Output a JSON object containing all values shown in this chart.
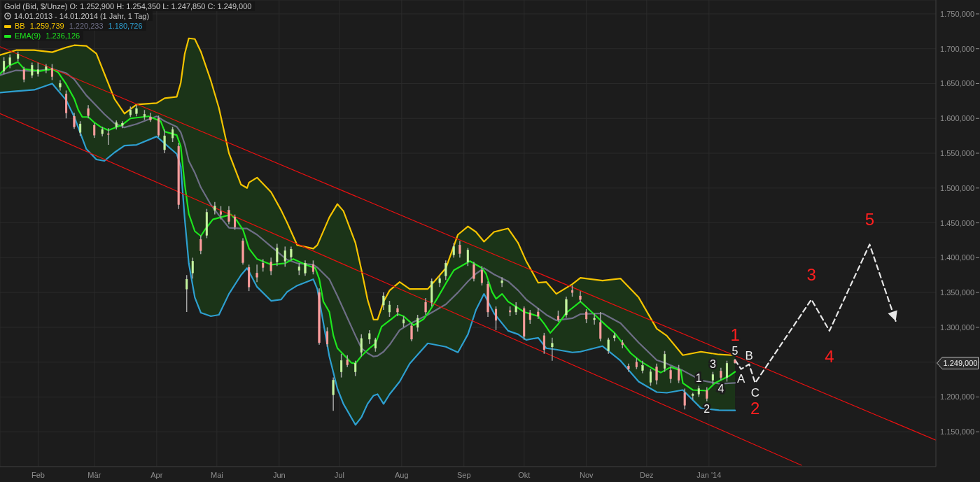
{
  "chart_data": {
    "type": "candlestick",
    "title": "Gold (Bid, $/Unze) O: 1.252,900 H: 1.254,350 L: 1.247,850 C: 1.249,000",
    "subtitle": "14.01.2013 - 14.01.2014 (1 Jahr, 1 Tag)",
    "x": [
      "2013-01-15",
      "2013-01-18",
      "2013-01-22",
      "2013-01-25",
      "2013-01-29",
      "2013-02-01",
      "2013-02-05",
      "2013-02-08",
      "2013-02-12",
      "2013-02-15",
      "2013-02-19",
      "2013-02-22",
      "2013-02-26",
      "2013-03-01",
      "2013-03-05",
      "2013-03-08",
      "2013-03-12",
      "2013-03-15",
      "2013-03-19",
      "2013-03-22",
      "2013-03-26",
      "2013-03-29",
      "2013-04-02",
      "2013-04-05",
      "2013-04-09",
      "2013-04-12",
      "2013-04-16",
      "2013-04-19",
      "2013-04-23",
      "2013-04-26",
      "2013-04-30",
      "2013-05-03",
      "2013-05-07",
      "2013-05-10",
      "2013-05-14",
      "2013-05-17",
      "2013-05-21",
      "2013-05-24",
      "2013-05-28",
      "2013-05-31",
      "2013-06-04",
      "2013-06-07",
      "2013-06-11",
      "2013-06-14",
      "2013-06-18",
      "2013-06-21",
      "2013-06-25",
      "2013-06-28",
      "2013-07-02",
      "2013-07-05",
      "2013-07-09",
      "2013-07-12",
      "2013-07-16",
      "2013-07-19",
      "2013-07-23",
      "2013-07-26",
      "2013-07-30",
      "2013-08-02",
      "2013-08-06",
      "2013-08-09",
      "2013-08-13",
      "2013-08-16",
      "2013-08-20",
      "2013-08-23",
      "2013-08-27",
      "2013-08-30",
      "2013-09-03",
      "2013-09-06",
      "2013-09-10",
      "2013-09-13",
      "2013-09-17",
      "2013-09-20",
      "2013-09-24",
      "2013-09-27",
      "2013-10-01",
      "2013-10-04",
      "2013-10-08",
      "2013-10-11",
      "2013-10-15",
      "2013-10-18",
      "2013-10-22",
      "2013-10-25",
      "2013-10-29",
      "2013-11-01",
      "2013-11-05",
      "2013-11-08",
      "2013-11-12",
      "2013-11-15",
      "2013-11-19",
      "2013-11-22",
      "2013-11-26",
      "2013-11-29",
      "2013-12-03",
      "2013-12-06",
      "2013-12-10",
      "2013-12-13",
      "2013-12-17",
      "2013-12-20",
      "2013-12-24",
      "2013-12-27",
      "2013-12-31",
      "2014-01-03",
      "2014-01-07",
      "2014-01-10",
      "2014-01-14"
    ],
    "ohlc": [
      [
        1668,
        1688,
        1664,
        1682
      ],
      [
        1677,
        1692,
        1672,
        1687
      ],
      [
        1686,
        1696,
        1682,
        1692
      ],
      [
        1670,
        1674,
        1652,
        1656
      ],
      [
        1662,
        1680,
        1658,
        1676
      ],
      [
        1664,
        1680,
        1660,
        1670
      ],
      [
        1670,
        1678,
        1665,
        1674
      ],
      [
        1672,
        1678,
        1655,
        1660
      ],
      [
        1645,
        1655,
        1640,
        1650
      ],
      [
        1635,
        1640,
        1600,
        1608
      ],
      [
        1603,
        1608,
        1585,
        1588
      ],
      [
        1580,
        1596,
        1575,
        1592
      ],
      [
        1614,
        1619,
        1600,
        1604
      ],
      [
        1590,
        1593,
        1572,
        1576
      ],
      [
        1578,
        1588,
        1574,
        1584
      ],
      [
        1578,
        1586,
        1562,
        1577
      ],
      [
        1588,
        1597,
        1584,
        1594
      ],
      [
        1590,
        1596,
        1586,
        1593
      ],
      [
        1605,
        1617,
        1602,
        1612
      ],
      [
        1607,
        1619,
        1603,
        1614
      ],
      [
        1603,
        1612,
        1598,
        1606
      ],
      [
        1602,
        1608,
        1595,
        1598
      ],
      [
        1600,
        1604,
        1573,
        1576
      ],
      [
        1555,
        1584,
        1550,
        1575
      ],
      [
        1572,
        1588,
        1566,
        1584
      ],
      [
        1560,
        1565,
        1470,
        1476
      ],
      [
        1355,
        1375,
        1322,
        1369
      ],
      [
        1378,
        1400,
        1370,
        1395
      ],
      [
        1426,
        1432,
        1405,
        1410
      ],
      [
        1432,
        1470,
        1428,
        1465
      ],
      [
        1468,
        1480,
        1462,
        1474
      ],
      [
        1466,
        1474,
        1455,
        1462
      ],
      [
        1468,
        1474,
        1448,
        1452
      ],
      [
        1458,
        1462,
        1440,
        1444
      ],
      [
        1424,
        1428,
        1390,
        1393
      ],
      [
        1386,
        1390,
        1352,
        1358
      ],
      [
        1378,
        1390,
        1365,
        1372
      ],
      [
        1392,
        1398,
        1380,
        1386
      ],
      [
        1394,
        1400,
        1375,
        1381
      ],
      [
        1394,
        1420,
        1388,
        1414
      ],
      [
        1395,
        1416,
        1387,
        1410
      ],
      [
        1401,
        1416,
        1396,
        1412
      ],
      [
        1382,
        1392,
        1375,
        1387
      ],
      [
        1378,
        1396,
        1374,
        1392
      ],
      [
        1390,
        1396,
        1376,
        1380
      ],
      [
        1350,
        1356,
        1275,
        1278
      ],
      [
        1294,
        1300,
        1272,
        1276
      ],
      [
        1203,
        1228,
        1180,
        1224
      ],
      [
        1236,
        1262,
        1228,
        1252
      ],
      [
        1253,
        1260,
        1243,
        1246
      ],
      [
        1236,
        1252,
        1230,
        1248
      ],
      [
        1264,
        1290,
        1258,
        1284
      ],
      [
        1283,
        1296,
        1276,
        1291
      ],
      [
        1270,
        1285,
        1265,
        1282
      ],
      [
        1332,
        1350,
        1325,
        1345
      ],
      [
        1322,
        1338,
        1315,
        1332
      ],
      [
        1327,
        1332,
        1316,
        1322
      ],
      [
        1306,
        1316,
        1300,
        1311
      ],
      [
        1302,
        1306,
        1280,
        1283
      ],
      [
        1300,
        1318,
        1294,
        1313
      ],
      [
        1336,
        1342,
        1318,
        1322
      ],
      [
        1336,
        1370,
        1330,
        1366
      ],
      [
        1364,
        1374,
        1358,
        1370
      ],
      [
        1374,
        1396,
        1368,
        1392
      ],
      [
        1404,
        1421,
        1400,
        1416
      ],
      [
        1418,
        1424,
        1400,
        1406
      ],
      [
        1394,
        1414,
        1388,
        1411
      ],
      [
        1390,
        1394,
        1366,
        1370
      ],
      [
        1382,
        1388,
        1360,
        1364
      ],
      [
        1362,
        1366,
        1315,
        1322
      ],
      [
        1326,
        1330,
        1296,
        1310
      ],
      [
        1364,
        1372,
        1358,
        1367
      ],
      [
        1324,
        1330,
        1316,
        1322
      ],
      [
        1322,
        1336,
        1318,
        1330
      ],
      [
        1327,
        1330,
        1282,
        1287
      ],
      [
        1321,
        1325,
        1305,
        1311
      ],
      [
        1322,
        1328,
        1312,
        1316
      ],
      [
        1288,
        1292,
        1262,
        1268
      ],
      [
        1272,
        1285,
        1252,
        1277
      ],
      [
        1316,
        1324,
        1308,
        1311
      ],
      [
        1318,
        1344,
        1314,
        1340
      ],
      [
        1353,
        1360,
        1344,
        1350
      ],
      [
        1345,
        1352,
        1336,
        1340
      ],
      [
        1322,
        1326,
        1306,
        1312
      ],
      [
        1311,
        1320,
        1304,
        1313
      ],
      [
        1307,
        1322,
        1280,
        1284
      ],
      [
        1266,
        1285,
        1262,
        1282
      ],
      [
        1285,
        1292,
        1280,
        1288
      ],
      [
        1278,
        1282,
        1270,
        1275
      ],
      [
        1244,
        1248,
        1236,
        1240
      ],
      [
        1250,
        1256,
        1240,
        1243
      ],
      [
        1238,
        1252,
        1234,
        1245
      ],
      [
        1221,
        1240,
        1216,
        1236
      ],
      [
        1243,
        1248,
        1218,
        1224
      ],
      [
        1241,
        1266,
        1236,
        1261
      ],
      [
        1238,
        1244,
        1220,
        1226
      ],
      [
        1240,
        1246,
        1220,
        1224
      ],
      [
        1206,
        1212,
        1182,
        1188
      ],
      [
        1202,
        1206,
        1196,
        1204
      ],
      [
        1204,
        1216,
        1200,
        1212
      ],
      [
        1209,
        1214,
        1194,
        1198
      ],
      [
        1224,
        1236,
        1218,
        1232
      ],
      [
        1237,
        1242,
        1224,
        1228
      ],
      [
        1228,
        1252,
        1222,
        1248
      ],
      [
        1252.9,
        1254.35,
        1247.85,
        1249
      ]
    ],
    "colors": [
      "#c6f5a0",
      "#c6f5a0",
      "#c6f5a0",
      "#ff9e9e",
      "#c6f5a0",
      "#c6f5a0",
      "#c6f5a0",
      "#ff9e9e",
      "#c6f5a0",
      "#ff9e9e",
      "#ff9e9e",
      "#c6f5a0",
      "#ff9e9e",
      "#ff9e9e",
      "#c6f5a0",
      "#ff9e9e",
      "#c6f5a0",
      "#c6f5a0",
      "#c6f5a0",
      "#c6f5a0",
      "#c6f5a0",
      "#ff9e9e",
      "#ff9e9e",
      "#c6f5a0",
      "#c6f5a0",
      "#ff9e9e",
      "#c6f5a0",
      "#c6f5a0",
      "#ff9e9e",
      "#c6f5a0",
      "#c6f5a0",
      "#ff9e9e",
      "#ff9e9e",
      "#ff9e9e",
      "#ff9e9e",
      "#ff9e9e",
      "#ff9e9e",
      "#ff9e9e",
      "#ff9e9e",
      "#c6f5a0",
      "#c6f5a0",
      "#c6f5a0",
      "#c6f5a0",
      "#c6f5a0",
      "#ff9e9e",
      "#ff9e9e",
      "#ff9e9e",
      "#c6f5a0",
      "#c6f5a0",
      "#ff9e9e",
      "#c6f5a0",
      "#c6f5a0",
      "#c6f5a0",
      "#c6f5a0",
      "#c6f5a0",
      "#c6f5a0",
      "#ff9e9e",
      "#c6f5a0",
      "#ff9e9e",
      "#c6f5a0",
      "#ff9e9e",
      "#c6f5a0",
      "#c6f5a0",
      "#c6f5a0",
      "#c6f5a0",
      "#ff9e9e",
      "#c6f5a0",
      "#ff9e9e",
      "#ff9e9e",
      "#ff9e9e",
      "#ff9e9e",
      "#c6f5a0",
      "#ff9e9e",
      "#c6f5a0",
      "#ff9e9e",
      "#ff9e9e",
      "#ff9e9e",
      "#ff9e9e",
      "#c6f5a0",
      "#ff9e9e",
      "#c6f5a0",
      "#ff9e9e",
      "#ff9e9e",
      "#ff9e9e",
      "#c6f5a0",
      "#ff9e9e",
      "#c6f5a0",
      "#c6f5a0",
      "#ff9e9e",
      "#ff9e9e",
      "#ff9e9e",
      "#c6f5a0",
      "#c6f5a0",
      "#ff9e9e",
      "#c6f5a0",
      "#ff9e9e",
      "#ff9e9e",
      "#ff9e9e",
      "#c6f5a0",
      "#c6f5a0",
      "#ff9e9e",
      "#c6f5a0",
      "#ff9e9e",
      "#c6f5a0",
      "#ff9e9e"
    ],
    "value_labels": [
      null,
      null,
      null,
      null,
      null,
      null,
      null,
      null,
      null,
      null,
      null,
      null,
      null,
      null,
      null,
      null,
      null,
      null,
      null,
      null,
      null,
      null,
      null,
      null,
      null,
      null,
      null,
      null,
      null,
      null,
      null,
      null,
      null,
      null,
      null,
      null,
      null,
      null,
      null,
      null,
      null,
      null,
      null,
      null,
      null,
      null,
      null,
      null,
      null,
      null,
      null,
      null,
      null,
      null,
      null,
      null,
      null,
      null,
      null,
      null,
      null,
      null,
      null,
      null,
      null,
      null,
      null,
      null,
      null,
      null,
      null,
      null,
      null,
      null,
      null,
      null,
      null,
      null,
      null,
      null,
      null,
      null,
      null,
      null,
      null,
      null,
      null,
      null,
      null,
      null,
      null,
      null,
      null,
      null,
      null,
      null,
      null,
      null,
      null,
      "1",
      "2",
      "3",
      "4",
      null,
      "5"
    ],
    "series": [
      {
        "type": "line",
        "name": "BB",
        "color": "#f5c400",
        "x": [
          "2013-01-13",
          "2013-01-21",
          "2013-01-30",
          "2013-02-08",
          "2013-02-15",
          "2013-02-19",
          "2013-02-25",
          "2013-03-02",
          "2013-03-06",
          "2013-03-11",
          "2013-03-16",
          "2013-03-22",
          "2013-04-01",
          "2013-04-05",
          "2013-04-11",
          "2013-04-13",
          "2013-04-15",
          "2013-04-17",
          "2013-04-20",
          "2013-04-23",
          "2013-04-28",
          "2013-05-02",
          "2013-05-07",
          "2013-05-13",
          "2013-05-16",
          "2013-05-17",
          "2013-05-21",
          "2013-05-28",
          "2013-06-02",
          "2013-06-05",
          "2013-06-10",
          "2013-06-18",
          "2013-06-20",
          "2013-06-26",
          "2013-06-30",
          "2013-07-03",
          "2013-07-09",
          "2013-07-12",
          "2013-07-15",
          "2013-07-18",
          "2013-07-20",
          "2013-07-23",
          "2013-07-26",
          "2013-07-31",
          "2013-08-05",
          "2013-08-14",
          "2013-08-23",
          "2013-08-29",
          "2013-09-03",
          "2013-09-07",
          "2013-09-11",
          "2013-09-16",
          "2013-09-23",
          "2013-09-28",
          "2013-10-02",
          "2013-10-08",
          "2013-10-12",
          "2013-10-17",
          "2013-10-25",
          "2013-10-29",
          "2013-11-09",
          "2013-11-18",
          "2013-11-27",
          "2013-12-06",
          "2013-12-11",
          "2013-12-19",
          "2013-12-28",
          "2014-01-06",
          "2014-01-14"
        ],
        "values": [
          1691,
          1698,
          1698,
          1695,
          1702,
          1705,
          1704,
          1693,
          1664,
          1628,
          1607,
          1620,
          1622,
          1629,
          1631,
          1651,
          1693,
          1715,
          1714,
          1696,
          1654,
          1615,
          1550,
          1505,
          1500,
          1508,
          1515,
          1494,
          1468,
          1450,
          1418,
          1413,
          1418,
          1458,
          1477,
          1467,
          1421,
          1382,
          1340,
          1311,
          1311,
          1337,
          1353,
          1365,
          1355,
          1355,
          1385,
          1433,
          1445,
          1437,
          1423,
          1437,
          1442,
          1421,
          1395,
          1364,
          1365,
          1348,
          1362,
          1371,
          1367,
          1370,
          1343,
          1298,
          1288,
          1260,
          1265,
          1261,
          1259.739
        ]
      },
      {
        "type": "line",
        "color": "#6e6e86",
        "x": [
          "2013-01-13",
          "2013-01-21",
          "2013-01-30",
          "2013-02-08",
          "2013-02-15",
          "2013-02-19",
          "2013-02-25",
          "2013-03-02",
          "2013-03-06",
          "2013-03-11",
          "2013-03-16",
          "2013-03-22",
          "2013-04-01",
          "2013-04-05",
          "2013-04-11",
          "2013-04-13",
          "2013-04-15",
          "2013-04-17",
          "2013-04-20",
          "2013-04-23",
          "2013-04-28",
          "2013-05-02",
          "2013-05-07",
          "2013-05-13",
          "2013-05-16",
          "2013-05-17",
          "2013-05-21",
          "2013-05-28",
          "2013-06-02",
          "2013-06-05",
          "2013-06-10",
          "2013-06-18",
          "2013-06-20",
          "2013-06-26",
          "2013-06-30",
          "2013-07-03",
          "2013-07-09",
          "2013-07-12",
          "2013-07-15",
          "2013-07-18",
          "2013-07-20",
          "2013-07-23",
          "2013-07-26",
          "2013-07-31",
          "2013-08-05",
          "2013-08-14",
          "2013-08-23",
          "2013-08-29",
          "2013-09-03",
          "2013-09-07",
          "2013-09-11",
          "2013-09-16",
          "2013-09-23",
          "2013-09-28",
          "2013-10-02",
          "2013-10-08",
          "2013-10-12",
          "2013-10-17",
          "2013-10-25",
          "2013-10-29",
          "2013-11-09",
          "2013-11-18",
          "2013-11-27",
          "2013-12-06",
          "2013-12-11",
          "2013-12-19",
          "2013-12-28",
          "2014-01-06",
          "2014-01-14"
        ],
        "values": [
          1662,
          1669,
          1668,
          1671,
          1665,
          1656,
          1633,
          1618,
          1606,
          1593,
          1587,
          1592,
          1603,
          1596,
          1588,
          1580,
          1563,
          1539,
          1522,
          1501,
          1476,
          1461,
          1443,
          1442,
          1442,
          1440,
          1433,
          1416,
          1404,
          1397,
          1392,
          1390,
          1386,
          1369,
          1345,
          1326,
          1288,
          1270,
          1263,
          1258,
          1259,
          1265,
          1275,
          1296,
          1305,
          1318,
          1333,
          1350,
          1366,
          1377,
          1385,
          1376,
          1366,
          1353,
          1340,
          1327,
          1318,
          1310,
          1313,
          1319,
          1320,
          1306,
          1278,
          1253,
          1248,
          1238,
          1224,
          1219,
          1220.233
        ],
        "upper": [
          1691,
          1698,
          1698,
          1695,
          1702,
          1705,
          1704,
          1693,
          1664,
          1628,
          1607,
          1620,
          1622,
          1629,
          1631,
          1651,
          1693,
          1715,
          1714,
          1696,
          1654,
          1615,
          1550,
          1505,
          1500,
          1508,
          1515,
          1494,
          1468,
          1450,
          1418,
          1413,
          1418,
          1458,
          1477,
          1467,
          1421,
          1382,
          1340,
          1311,
          1311,
          1337,
          1353,
          1365,
          1355,
          1355,
          1385,
          1433,
          1445,
          1437,
          1423,
          1437,
          1442,
          1421,
          1395,
          1364,
          1365,
          1348,
          1362,
          1371,
          1367,
          1370,
          1343,
          1298,
          1288,
          1260,
          1265,
          1261,
          1259.739
        ],
        "lower": [
          1637,
          1639,
          1641,
          1650,
          1626,
          1602,
          1556,
          1541,
          1539,
          1551,
          1561,
          1562,
          1574,
          1564,
          1549,
          1531,
          1455,
          1392,
          1343,
          1321,
          1316,
          1318,
          1348,
          1375,
          1385,
          1380,
          1358,
          1338,
          1340,
          1351,
          1360,
          1369,
          1355,
          1258,
          1212,
          1190,
          1160,
          1171,
          1190,
          1202,
          1204,
          1190,
          1204,
          1222,
          1248,
          1277,
          1272,
          1264,
          1290,
          1325,
          1348,
          1320,
          1295,
          1290,
          1282,
          1285,
          1270,
          1268,
          1264,
          1265,
          1273,
          1252,
          1222,
          1207,
          1206,
          1210,
          1184,
          1181,
          1180.726
        ]
      },
      {
        "type": "line",
        "color": "#2e9fd0",
        "x": [
          "2013-01-13",
          "2013-01-21",
          "2013-01-30",
          "2013-02-08",
          "2013-02-15",
          "2013-02-19",
          "2013-02-25",
          "2013-03-02",
          "2013-03-06",
          "2013-03-11",
          "2013-03-16",
          "2013-03-22",
          "2013-04-01",
          "2013-04-05",
          "2013-04-11",
          "2013-04-13",
          "2013-04-15",
          "2013-04-17",
          "2013-04-20",
          "2013-04-23",
          "2013-04-28",
          "2013-05-02",
          "2013-05-07",
          "2013-05-13",
          "2013-05-16",
          "2013-05-17",
          "2013-05-21",
          "2013-05-28",
          "2013-06-02",
          "2013-06-05",
          "2013-06-10",
          "2013-06-18",
          "2013-06-20",
          "2013-06-26",
          "2013-06-30",
          "2013-07-03",
          "2013-07-09",
          "2013-07-12",
          "2013-07-15",
          "2013-07-18",
          "2013-07-20",
          "2013-07-23",
          "2013-07-26",
          "2013-07-31",
          "2013-08-05",
          "2013-08-14",
          "2013-08-23",
          "2013-08-29",
          "2013-09-03",
          "2013-09-07",
          "2013-09-11",
          "2013-09-16",
          "2013-09-23",
          "2013-09-28",
          "2013-10-02",
          "2013-10-08",
          "2013-10-12",
          "2013-10-17",
          "2013-10-25",
          "2013-10-29",
          "2013-11-09",
          "2013-11-18",
          "2013-11-27",
          "2013-12-06",
          "2013-12-11",
          "2013-12-19",
          "2013-12-28",
          "2014-01-06",
          "2014-01-14"
        ],
        "values": [
          1637,
          1639,
          1641,
          1650,
          1626,
          1602,
          1556,
          1541,
          1539,
          1551,
          1561,
          1562,
          1574,
          1564,
          1549,
          1531,
          1455,
          1392,
          1343,
          1321,
          1316,
          1318,
          1348,
          1375,
          1385,
          1380,
          1358,
          1338,
          1340,
          1351,
          1360,
          1369,
          1355,
          1258,
          1212,
          1190,
          1160,
          1171,
          1190,
          1202,
          1204,
          1190,
          1204,
          1222,
          1248,
          1277,
          1272,
          1264,
          1290,
          1325,
          1348,
          1320,
          1295,
          1290,
          1282,
          1285,
          1270,
          1268,
          1264,
          1265,
          1273,
          1252,
          1222,
          1207,
          1206,
          1210,
          1184,
          1181,
          1180.726
        ]
      },
      {
        "type": "line",
        "name": "EMA(9)",
        "color": "#1ee61e",
        "x": [
          "2013-01-13",
          "2013-01-17",
          "2013-01-22",
          "2013-01-25",
          "2013-02-02",
          "2013-02-08",
          "2013-02-11",
          "2013-02-15",
          "2013-02-19",
          "2013-02-21",
          "2013-02-23",
          "2013-02-26",
          "2013-03-01",
          "2013-03-04",
          "2013-03-08",
          "2013-03-15",
          "2013-03-19",
          "2013-03-28",
          "2013-04-03",
          "2013-04-05",
          "2013-04-11",
          "2013-04-13",
          "2013-04-15",
          "2013-04-17",
          "2013-04-20",
          "2013-04-23",
          "2013-04-25",
          "2013-04-29",
          "2013-05-08",
          "2013-05-11",
          "2013-05-14",
          "2013-05-17",
          "2013-05-21",
          "2013-05-28",
          "2013-06-04",
          "2013-06-08",
          "2013-06-15",
          "2013-06-19",
          "2013-06-21",
          "2013-06-23",
          "2013-06-26",
          "2013-06-28",
          "2013-06-30",
          "2013-07-07",
          "2013-07-09",
          "2013-07-12",
          "2013-07-16",
          "2013-07-19",
          "2013-07-22",
          "2013-07-27",
          "2013-07-30",
          "2013-08-02",
          "2013-08-07",
          "2013-08-12",
          "2013-08-15",
          "2013-08-19",
          "2013-08-23",
          "2013-08-27",
          "2013-09-04",
          "2013-09-10",
          "2013-09-12",
          "2013-09-15",
          "2013-09-17",
          "2013-09-20",
          "2013-09-23",
          "2013-10-01",
          "2013-10-08",
          "2013-10-11",
          "2013-10-14",
          "2013-10-18",
          "2013-10-22",
          "2013-10-29",
          "2013-11-04",
          "2013-11-11",
          "2013-11-15",
          "2013-11-23",
          "2013-11-28",
          "2013-12-05",
          "2013-12-08",
          "2013-12-13",
          "2013-12-18",
          "2013-12-19",
          "2013-12-24",
          "2013-12-31",
          "2014-01-04",
          "2014-01-11",
          "2014-01-14"
        ],
        "values": [
          1664,
          1675,
          1681,
          1671,
          1668,
          1671,
          1666,
          1649,
          1628,
          1612,
          1602,
          1602,
          1594,
          1588,
          1583,
          1591,
          1600,
          1603,
          1596,
          1581,
          1576,
          1560,
          1505,
          1463,
          1438,
          1431,
          1440,
          1455,
          1462,
          1453,
          1440,
          1413,
          1398,
          1390,
          1392,
          1398,
          1389,
          1385,
          1369,
          1337,
          1322,
          1288,
          1270,
          1249,
          1248,
          1259,
          1270,
          1277,
          1301,
          1312,
          1319,
          1316,
          1303,
          1312,
          1324,
          1343,
          1363,
          1382,
          1395,
          1385,
          1377,
          1351,
          1341,
          1348,
          1337,
          1322,
          1316,
          1305,
          1292,
          1305,
          1321,
          1337,
          1321,
          1302,
          1292,
          1263,
          1251,
          1239,
          1235,
          1243,
          1238,
          1220,
          1210,
          1209,
          1220,
          1230,
          1236.126
        ]
      },
      {
        "type": "line",
        "color": "#e81010",
        "x": [
          "2013-01-13",
          "2014-04-24"
        ],
        "values": [
          1703,
          1138
        ]
      },
      {
        "type": "line",
        "color": "#e81010",
        "x": [
          "2013-01-13",
          "2014-02-16"
        ],
        "values": [
          1607,
          1102
        ]
      },
      {
        "type": "line",
        "color": "#e6e6e6",
        "line_style": "dashed",
        "x": [
          "2014-01-14",
          "2014-01-17",
          "2014-01-21",
          "2014-01-24",
          "2014-02-21",
          "2014-03-02",
          "2014-03-22",
          "2014-04-04"
        ],
        "values": [
          1253,
          1240,
          1247,
          1220,
          1340,
          1295,
          1419,
          1309
        ]
      }
    ],
    "xlim": [
      "2013-01-13",
      "2014-04-24"
    ],
    "ylim": [
      1100,
      1770
    ],
    "xticks": [
      {
        "value": "2013-02-01",
        "label": "Feb"
      },
      {
        "value": "2013-03-01",
        "label": "Mär"
      },
      {
        "value": "2013-04-01",
        "label": "Apr"
      },
      {
        "value": "2013-05-01",
        "label": "Mai"
      },
      {
        "value": "2013-06-01",
        "label": "Jun"
      },
      {
        "value": "2013-07-01",
        "label": "Jul"
      },
      {
        "value": "2013-08-01",
        "label": "Aug"
      },
      {
        "value": "2013-09-01",
        "label": "Sep"
      },
      {
        "value": "2013-10-01",
        "label": "Okt"
      },
      {
        "value": "2013-11-01",
        "label": "Nov"
      },
      {
        "value": "2013-12-01",
        "label": "Dez"
      },
      {
        "value": "2014-01-01",
        "label": "Jan '14"
      }
    ],
    "yticks": [
      {
        "value": 1150,
        "label": "1.150,000"
      },
      {
        "value": 1200,
        "label": "1.200,000"
      },
      {
        "value": 1250,
        "label": null
      },
      {
        "value": 1300,
        "label": "1.300,000"
      },
      {
        "value": 1350,
        "label": "1.350,000"
      },
      {
        "value": 1400,
        "label": "1.400,000"
      },
      {
        "value": 1450,
        "label": "1.450,000"
      },
      {
        "value": 1500,
        "label": "1.500,000"
      },
      {
        "value": 1550,
        "label": "1.550,000"
      },
      {
        "value": 1600,
        "label": "1.600,000"
      },
      {
        "value": 1650,
        "label": "1.650,000"
      },
      {
        "value": 1700,
        "label": "1.700,000"
      },
      {
        "value": 1750,
        "label": "1.750,000"
      }
    ],
    "grid": true,
    "legend": "top left",
    "annotations": [
      "1.259,739",
      "1.220,233",
      "1.180,726",
      "1.236,126",
      "1.249,000",
      {
        "text": "1",
        "x": "2014-01-14",
        "y": 1253
      },
      {
        "text": "2",
        "x": "2014-01-24",
        "y": 1220
      },
      {
        "text": "3",
        "x": "2014-02-21",
        "y": 1340
      },
      {
        "text": "4",
        "x": "2014-03-02",
        "y": 1295
      },
      {
        "text": "5",
        "x": "2014-03-22",
        "y": 1419
      },
      {
        "text": "A",
        "x": "2014-01-17",
        "y": 1240
      },
      {
        "text": "B",
        "x": "2014-01-21",
        "y": 1247
      },
      {
        "text": "C",
        "x": "2014-01-24",
        "y": 1220
      }
    ]
  }
}
